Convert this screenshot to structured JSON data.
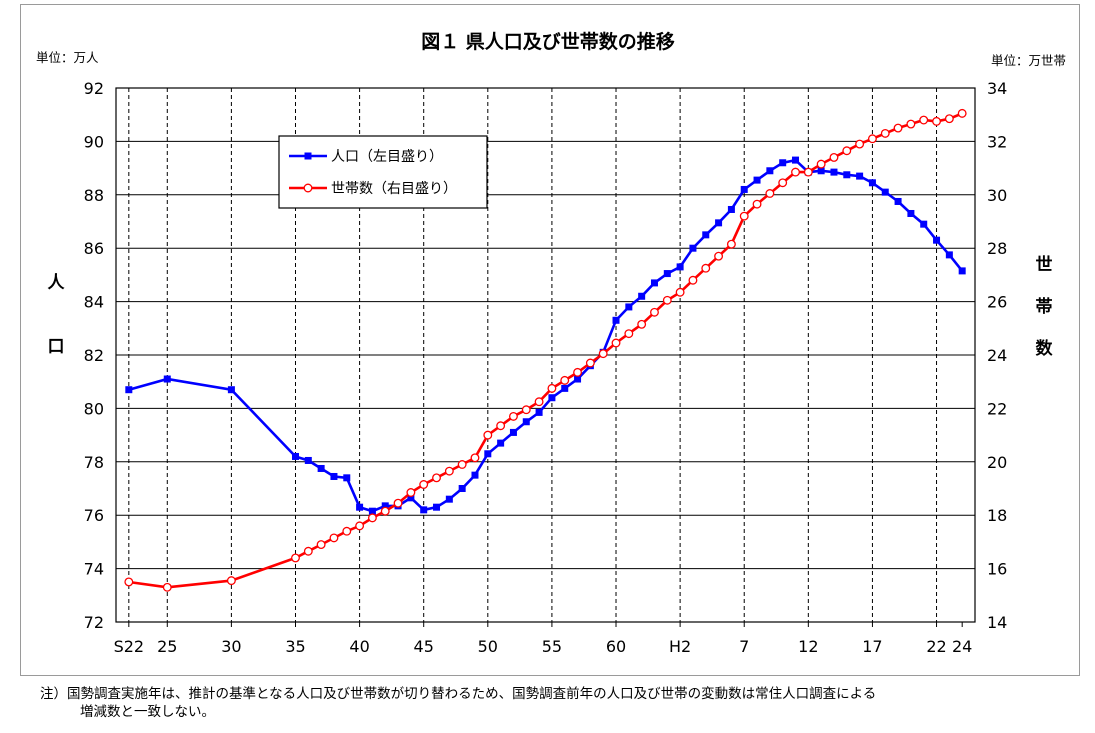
{
  "chart_data": {
    "type": "line",
    "title": "図１ 県人口及び世帯数の推移",
    "left_unit": "単位：万人",
    "right_unit": "単位：万世帯",
    "left_axis_label": [
      "人",
      "口"
    ],
    "right_axis_label": [
      "世",
      "帯",
      "数"
    ],
    "y_left_lim": [
      72,
      92
    ],
    "y_left_ticks": [
      "72",
      "74",
      "76",
      "78",
      "80",
      "82",
      "84",
      "86",
      "88",
      "90",
      "92"
    ],
    "y_right_lim": [
      14,
      34
    ],
    "y_right_ticks": [
      "14",
      "16",
      "18",
      "20",
      "22",
      "24",
      "26",
      "28",
      "30",
      "32",
      "34"
    ],
    "x_lim": [
      1946,
      2013
    ],
    "x_ticks": [
      {
        "year": 1947,
        "label": "S22"
      },
      {
        "year": 1950,
        "label": "25"
      },
      {
        "year": 1955,
        "label": "30"
      },
      {
        "year": 1960,
        "label": "35"
      },
      {
        "year": 1965,
        "label": "40"
      },
      {
        "year": 1970,
        "label": "45"
      },
      {
        "year": 1975,
        "label": "50"
      },
      {
        "year": 1980,
        "label": "55"
      },
      {
        "year": 1985,
        "label": "60"
      },
      {
        "year": 1990,
        "label": "H2"
      },
      {
        "year": 1995,
        "label": "7"
      },
      {
        "year": 2000,
        "label": "12"
      },
      {
        "year": 2005,
        "label": "17"
      },
      {
        "year": 2010,
        "label": "22"
      },
      {
        "year": 2012,
        "label": "24"
      }
    ],
    "grid": true,
    "legend_position": "top-left",
    "series": [
      {
        "name": "人口（左目盛り）",
        "axis": "left",
        "color": "#0000ff",
        "marker": "square",
        "points": [
          [
            1947,
            80.7
          ],
          [
            1950,
            81.1
          ],
          [
            1955,
            80.7
          ],
          [
            1960,
            78.2
          ],
          [
            1961,
            78.05
          ],
          [
            1962,
            77.75
          ],
          [
            1963,
            77.45
          ],
          [
            1964,
            77.4
          ],
          [
            1965,
            76.3
          ],
          [
            1966,
            76.15
          ],
          [
            1967,
            76.35
          ],
          [
            1968,
            76.35
          ],
          [
            1969,
            76.65
          ],
          [
            1970,
            76.2
          ],
          [
            1971,
            76.3
          ],
          [
            1972,
            76.6
          ],
          [
            1973,
            77.0
          ],
          [
            1974,
            77.5
          ],
          [
            1975,
            78.3
          ],
          [
            1976,
            78.7
          ],
          [
            1977,
            79.1
          ],
          [
            1978,
            79.5
          ],
          [
            1979,
            79.85
          ],
          [
            1980,
            80.4
          ],
          [
            1981,
            80.75
          ],
          [
            1982,
            81.1
          ],
          [
            1983,
            81.6
          ],
          [
            1984,
            82.1
          ],
          [
            1985,
            83.3
          ],
          [
            1986,
            83.8
          ],
          [
            1987,
            84.2
          ],
          [
            1988,
            84.7
          ],
          [
            1989,
            85.05
          ],
          [
            1990,
            85.3
          ],
          [
            1991,
            86.0
          ],
          [
            1992,
            86.5
          ],
          [
            1993,
            86.95
          ],
          [
            1994,
            87.45
          ],
          [
            1995,
            88.2
          ],
          [
            1996,
            88.55
          ],
          [
            1997,
            88.9
          ],
          [
            1998,
            89.2
          ],
          [
            1999,
            89.3
          ],
          [
            2000,
            88.85
          ],
          [
            2001,
            88.9
          ],
          [
            2002,
            88.85
          ],
          [
            2003,
            88.75
          ],
          [
            2004,
            88.7
          ],
          [
            2005,
            88.45
          ],
          [
            2006,
            88.1
          ],
          [
            2007,
            87.75
          ],
          [
            2008,
            87.3
          ],
          [
            2009,
            86.9
          ],
          [
            2010,
            86.3
          ],
          [
            2011,
            85.75
          ],
          [
            2012,
            85.15
          ]
        ]
      },
      {
        "name": "世帯数（右目盛り）",
        "axis": "right",
        "color": "#ff0000",
        "marker": "circle-open",
        "points": [
          [
            1947,
            15.5
          ],
          [
            1950,
            15.3
          ],
          [
            1955,
            15.55
          ],
          [
            1960,
            16.4
          ],
          [
            1961,
            16.65
          ],
          [
            1962,
            16.9
          ],
          [
            1963,
            17.15
          ],
          [
            1964,
            17.4
          ],
          [
            1965,
            17.6
          ],
          [
            1966,
            17.9
          ],
          [
            1967,
            18.15
          ],
          [
            1968,
            18.45
          ],
          [
            1969,
            18.85
          ],
          [
            1970,
            19.15
          ],
          [
            1971,
            19.4
          ],
          [
            1972,
            19.65
          ],
          [
            1973,
            19.9
          ],
          [
            1974,
            20.15
          ],
          [
            1975,
            21.0
          ],
          [
            1976,
            21.35
          ],
          [
            1977,
            21.7
          ],
          [
            1978,
            21.95
          ],
          [
            1979,
            22.25
          ],
          [
            1980,
            22.75
          ],
          [
            1981,
            23.05
          ],
          [
            1982,
            23.35
          ],
          [
            1983,
            23.7
          ],
          [
            1984,
            24.05
          ],
          [
            1985,
            24.45
          ],
          [
            1986,
            24.8
          ],
          [
            1987,
            25.15
          ],
          [
            1988,
            25.6
          ],
          [
            1989,
            26.05
          ],
          [
            1990,
            26.35
          ],
          [
            1991,
            26.8
          ],
          [
            1992,
            27.25
          ],
          [
            1993,
            27.7
          ],
          [
            1994,
            28.15
          ],
          [
            1995,
            29.2
          ],
          [
            1996,
            29.65
          ],
          [
            1997,
            30.05
          ],
          [
            1998,
            30.45
          ],
          [
            1999,
            30.85
          ],
          [
            2000,
            30.85
          ],
          [
            2001,
            31.15
          ],
          [
            2002,
            31.4
          ],
          [
            2003,
            31.65
          ],
          [
            2004,
            31.9
          ],
          [
            2005,
            32.1
          ],
          [
            2006,
            32.3
          ],
          [
            2007,
            32.5
          ],
          [
            2008,
            32.65
          ],
          [
            2009,
            32.8
          ],
          [
            2010,
            32.75
          ],
          [
            2011,
            32.85
          ],
          [
            2012,
            33.05
          ]
        ]
      }
    ]
  },
  "note": {
    "line1": "注）国勢調査実施年は、推計の基準となる人口及び世帯数が切り替わるため、国勢調査前年の人口及び世帯の変動数は常住人口調査による",
    "line2": "増減数と一致しない。"
  }
}
